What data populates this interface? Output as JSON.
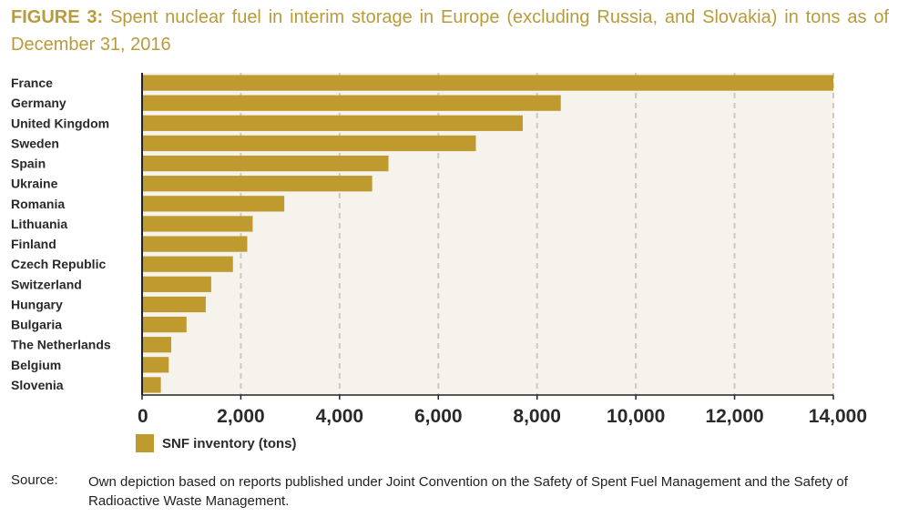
{
  "title": {
    "prefix": "FIGURE 3:",
    "text": "Spent nuclear fuel in interim storage in Europe (excluding Russia, and Slovakia) in tons as of December 31, 2016"
  },
  "colors": {
    "bar": "#bf9a2e",
    "plot_bg": "#f6f2ec",
    "grid": "#cfc9c0",
    "title": "#b89b3a"
  },
  "chart_data": {
    "type": "bar",
    "orientation": "horizontal",
    "categories": [
      "France",
      "Germany",
      "United Kingdom",
      "Sweden",
      "Spain",
      "Ukraine",
      "Romania",
      "Lithuania",
      "Finland",
      "Czech Republic",
      "Switzerland",
      "Hungary",
      "Bulgaria",
      "The Netherlands",
      "Belgium",
      "Slovenia"
    ],
    "series": [
      {
        "name": "SNF inventory (tons)",
        "values": [
          14000,
          8480,
          7710,
          6760,
          4990,
          4660,
          2880,
          2240,
          2130,
          1840,
          1400,
          1290,
          900,
          590,
          540,
          380
        ]
      }
    ],
    "xlim": [
      0,
      14000
    ],
    "xticks": [
      "0",
      "2,000",
      "4,000",
      "6,000",
      "8,000",
      "10,000",
      "12,000",
      "14,000"
    ],
    "grid": "vertical dashed",
    "legend": "bottom-left"
  },
  "source": {
    "label": "Source:",
    "text": "Own depiction based on reports published under Joint Convention on the Safety of Spent Fuel Management and the Safety of Radioactive Waste Management."
  }
}
